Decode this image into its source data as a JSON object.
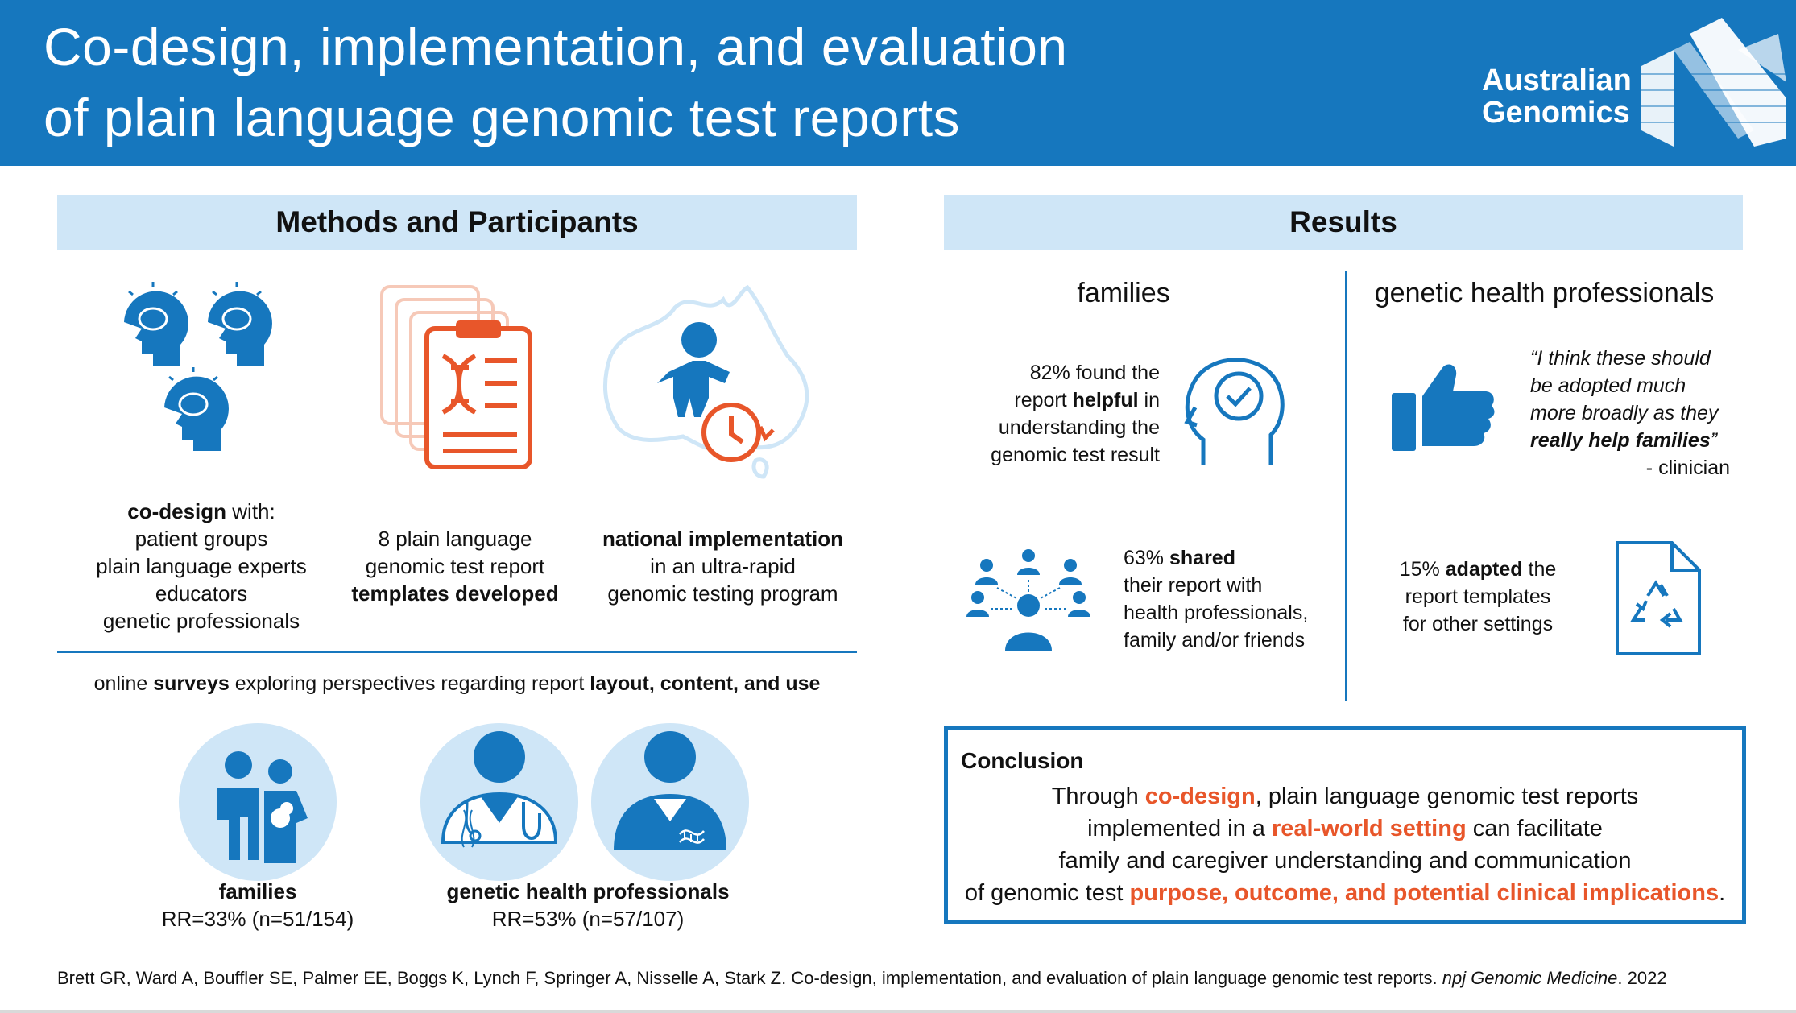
{
  "header": {
    "title_line1": "Co-design, implementation, and evaluation",
    "title_line2": "of plain language genomic test reports",
    "brand_line1": "Australian",
    "brand_line2": "Genomics"
  },
  "methods": {
    "heading": "Methods and Participants",
    "codesign": {
      "bold": "co-design",
      "rest": " with:",
      "lines": [
        "patient groups",
        "plain language experts",
        "educators",
        "genetic professionals"
      ]
    },
    "templates": {
      "line1": "8 plain language",
      "line2": "genomic test report",
      "bold": "templates developed"
    },
    "national": {
      "bold": "national implementation",
      "line2": "in an ultra-rapid",
      "line3": "genomic testing program"
    },
    "surveys": {
      "pre": "online ",
      "bold1": "surveys",
      "mid": " exploring perspectives regarding report ",
      "bold2": "layout, content, and use"
    },
    "families": {
      "label": "families",
      "rr": "RR=33% (n=51/154)"
    },
    "professionals": {
      "label": "genetic health professionals",
      "rr": "RR=53% (n=57/107)"
    }
  },
  "results": {
    "heading": "Results",
    "families_head": "families",
    "professionals_head": "genetic health professionals",
    "helpful": {
      "pre": "82% found the",
      "l2a": "report ",
      "l2b": "helpful",
      "l2c": " in",
      "l3": "understanding the",
      "l4": "genomic test result"
    },
    "shared": {
      "l1a": "63% ",
      "l1b": "shared",
      "l2": "their report with",
      "l3": "health professionals,",
      "l4": "family and/or friends"
    },
    "quote": {
      "l1": "“I think these should",
      "l2": "be adopted much",
      "l3": "more broadly as they",
      "l4": "really help families",
      "l4end": "”",
      "attrib": "- clinician"
    },
    "adapted": {
      "l1a": "15% ",
      "l1b": "adapted",
      "l1c": " the",
      "l2": "report templates",
      "l3": "for other settings"
    }
  },
  "conclusion": {
    "title": "Conclusion",
    "l1a": "Through ",
    "l1b": "co-design",
    "l1c": ", plain language genomic test reports",
    "l2a": "implemented in a ",
    "l2b": "real-world setting",
    "l2c": " can facilitate",
    "l3": "family and caregiver understanding and communication",
    "l4a": "of genomic test ",
    "l4b": "purpose, outcome, and potential clinical implications",
    "l4c": "."
  },
  "citation": {
    "text": "Brett GR, Ward A, Bouffler SE, Palmer EE, Boggs K, Lynch F, Springer A, Nisselle A, Stark Z. Co-design, implementation, and evaluation of plain language genomic test reports. ",
    "journal": "npj Genomic Medicine",
    "year": ". 2022"
  },
  "colors": {
    "blue": "#1677BE",
    "light_blue": "#CFE6F7",
    "orange": "#E8562A"
  }
}
